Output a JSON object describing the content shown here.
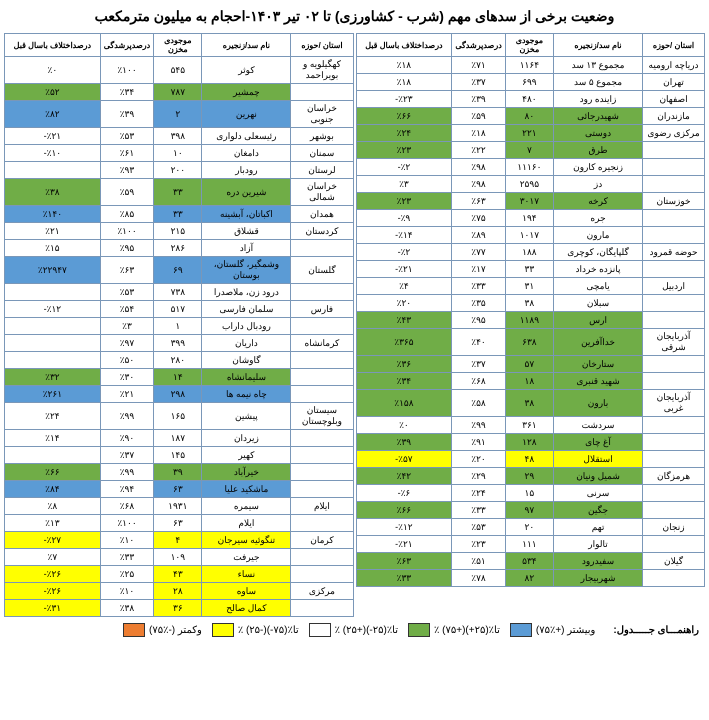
{
  "title": "وضعیت برخی از سدهای مهم (شرب - کشاورزی) تا ۰۲ تیر ۱۴۰۳-احجام به میلیون مترمکعب",
  "headers": {
    "province": "استان /حوزه",
    "name": "نام سد/زنجیره",
    "volume": "موجودی مخزن",
    "fill": "درصدپرشدگی",
    "diff": "درصداختلاف باسال قبل"
  },
  "legend": {
    "title": "راهنمـــای جـــــدول:",
    "items": [
      {
        "swatch": "sw-blue",
        "label": "(۷۵٪+) وبیشتر"
      },
      {
        "swatch": "sw-green",
        "label": "٪ (۷۵+)تا٪(۲۵+)"
      },
      {
        "swatch": "sw-white",
        "label": "٪ (۲۵+)تا٪(۲۵-)"
      },
      {
        "swatch": "sw-yellow",
        "label": "٪ (۲۵-)تا٪(۷۵-)"
      },
      {
        "swatch": "sw-orange",
        "label": "(۷۵٪-) وکمتر"
      }
    ]
  },
  "right": [
    {
      "prov": "دریاچه ارومیه",
      "name": "مجموع ۱۳ سد",
      "vol": "۱۱۶۴",
      "fill": "٪۷۱",
      "diff": "٪۱۸",
      "cls": "c-white"
    },
    {
      "prov": "تهران",
      "name": "مجموع ۵ سد",
      "vol": "۶۹۹",
      "fill": "٪۳۷",
      "diff": "٪۱۸",
      "cls": "c-white"
    },
    {
      "prov": "اصفهان",
      "name": "زاینده رود",
      "vol": "۴۸۰",
      "fill": "٪۳۹",
      "diff": "٪۲۳-",
      "cls": "c-white"
    },
    {
      "prov": "مازندران",
      "name": "شهیدرجائی",
      "vol": "۸۰",
      "fill": "٪۵۹",
      "diff": "٪۶۶",
      "cls": "c-green"
    },
    {
      "prov": "مرکزی رضوی",
      "name": "دوستی",
      "vol": "۲۲۱",
      "fill": "٪۱۸",
      "diff": "٪۲۴",
      "cls": "c-green"
    },
    {
      "prov": "",
      "name": "طرق",
      "vol": "۷",
      "fill": "٪۲۲",
      "diff": "٪۲۳",
      "cls": "c-green"
    },
    {
      "prov": "",
      "name": "زنجیره کارون",
      "vol": "۱۱۱۶۰",
      "fill": "٪۹۸",
      "diff": "٪۲-",
      "cls": "c-white"
    },
    {
      "prov": "",
      "name": "دز",
      "vol": "۲۵۹۵",
      "fill": "٪۹۸",
      "diff": "٪۳",
      "cls": "c-white"
    },
    {
      "prov": "خوزستان",
      "name": "کرخه",
      "vol": "۳۰۱۷",
      "fill": "٪۶۳",
      "diff": "٪۲۳",
      "cls": "c-green"
    },
    {
      "prov": "",
      "name": "جره",
      "vol": "۱۹۴",
      "fill": "٪۷۵",
      "diff": "٪۹-",
      "cls": "c-white"
    },
    {
      "prov": "",
      "name": "مارون",
      "vol": "۱۰۱۷",
      "fill": "٪۸۹",
      "diff": "٪۱۴-",
      "cls": "c-white"
    },
    {
      "prov": "حوضه قمرود",
      "name": "گلپایگان، کوچری",
      "vol": "۱۸۸",
      "fill": "٪۷۷",
      "diff": "٪۲-",
      "cls": "c-white"
    },
    {
      "prov": "",
      "name": "پانزده خرداد",
      "vol": "۳۳",
      "fill": "٪۱۷",
      "diff": "٪۲۱-",
      "cls": "c-white"
    },
    {
      "prov": "اردبیل",
      "name": "یامچی",
      "vol": "۳۱",
      "fill": "٪۳۳",
      "diff": "٪۴",
      "cls": "c-white"
    },
    {
      "prov": "",
      "name": "سبلان",
      "vol": "۳۸",
      "fill": "٪۳۵",
      "diff": "٪۲۰",
      "cls": "c-white"
    },
    {
      "prov": "",
      "name": "ارس",
      "vol": "۱۱۸۹",
      "fill": "٪۹۵",
      "diff": "٪۴۳",
      "cls": "c-green"
    },
    {
      "prov": "آذربایجان شرقی",
      "name": "خداآفرین",
      "vol": "۶۳۸",
      "fill": "٪۴۰",
      "diff": "٪۳۶۵",
      "cls": "c-green"
    },
    {
      "prov": "",
      "name": "ستارخان",
      "vol": "۵۷",
      "fill": "٪۳۷",
      "diff": "٪۳۶",
      "cls": "c-green"
    },
    {
      "prov": "",
      "name": "شهید قنبری",
      "vol": "۱۸",
      "fill": "٪۶۸",
      "diff": "٪۳۴",
      "cls": "c-green"
    },
    {
      "prov": "آذربایجان غربی",
      "name": "بارون",
      "vol": "۳۸",
      "fill": "٪۵۸",
      "diff": "٪۱۵۸",
      "cls": "c-green"
    },
    {
      "prov": "",
      "name": "سردشت",
      "vol": "۳۶۱",
      "fill": "٪۹۹",
      "diff": "٪۰",
      "cls": "c-white"
    },
    {
      "prov": "",
      "name": "آغ چای",
      "vol": "۱۲۸",
      "fill": "٪۹۱",
      "diff": "٪۳۹",
      "cls": "c-green"
    },
    {
      "prov": "",
      "name": "استقلال",
      "vol": "۴۸",
      "fill": "٪۲۰",
      "diff": "٪۵۷-",
      "cls": "c-yellow"
    },
    {
      "prov": "هرمزگان",
      "name": "شمیل ونیان",
      "vol": "۲۹",
      "fill": "٪۲۹",
      "diff": "٪۴۲",
      "cls": "c-green"
    },
    {
      "prov": "",
      "name": "سرنی",
      "vol": "۱۵",
      "fill": "٪۲۴",
      "diff": "٪۶-",
      "cls": "c-white"
    },
    {
      "prov": "",
      "name": "جگین",
      "vol": "۹۷",
      "fill": "٪۳۳",
      "diff": "٪۶۶",
      "cls": "c-green"
    },
    {
      "prov": "زنجان",
      "name": "تهم",
      "vol": "۲۰",
      "fill": "٪۵۳",
      "diff": "٪۱۲-",
      "cls": "c-white"
    },
    {
      "prov": "",
      "name": "تالوار",
      "vol": "۱۱۱",
      "fill": "٪۲۳",
      "diff": "٪۲۱-",
      "cls": "c-white"
    },
    {
      "prov": "گیلان",
      "name": "سفیدرود",
      "vol": "۵۳۴",
      "fill": "٪۵۱",
      "diff": "٪۶۳",
      "cls": "c-green"
    },
    {
      "prov": "",
      "name": "شهربیجار",
      "vol": "۸۲",
      "fill": "٪۷۸",
      "diff": "٪۳۳",
      "cls": "c-green"
    }
  ],
  "left": [
    {
      "prov": "کهگیلویه و بویراحمد",
      "name": "کوثر",
      "vol": "۵۴۵",
      "fill": "٪۱۰۰",
      "diff": "٪۰",
      "cls": "c-white"
    },
    {
      "prov": "",
      "name": "چمشیر",
      "vol": "۷۸۷",
      "fill": "٪۳۴",
      "diff": "٪۵۲",
      "cls": "c-green"
    },
    {
      "prov": "خراسان جنوبی",
      "name": "نهرین",
      "vol": "۲",
      "fill": "٪۳۹",
      "diff": "٪۸۲",
      "cls": "c-blue"
    },
    {
      "prov": "بوشهر",
      "name": "رئیسعلی دلواری",
      "vol": "۳۹۸",
      "fill": "٪۵۳",
      "diff": "٪۲۱-",
      "cls": "c-white"
    },
    {
      "prov": "سمنان",
      "name": "دامغان",
      "vol": "۱۰",
      "fill": "٪۶۱",
      "diff": "٪۱۰-",
      "cls": "c-white"
    },
    {
      "prov": "لرستان",
      "name": "رودبار",
      "vol": "۲۰۰",
      "fill": "٪۹۳",
      "diff": "",
      "cls": "c-white"
    },
    {
      "prov": "خراسان شمالی",
      "name": "شیرین دره",
      "vol": "۳۳",
      "fill": "٪۵۹",
      "diff": "٪۳۸",
      "cls": "c-green"
    },
    {
      "prov": "همدان",
      "name": "اکباتان، آبشینه",
      "vol": "۳۳",
      "fill": "٪۸۵",
      "diff": "٪۱۴۰",
      "cls": "c-blue"
    },
    {
      "prov": "کردستان",
      "name": "قشلاق",
      "vol": "۲۱۵",
      "fill": "٪۱۰۰",
      "diff": "٪۲۱",
      "cls": "c-white"
    },
    {
      "prov": "",
      "name": "آزاد",
      "vol": "۲۸۶",
      "fill": "٪۹۵",
      "diff": "٪۱۵",
      "cls": "c-white"
    },
    {
      "prov": "گلستان",
      "name": "وشمگیر، گلستان، بوستان",
      "vol": "۶۹",
      "fill": "٪۶۳",
      "diff": "٪۲۲۹۴۷",
      "cls": "c-blue"
    },
    {
      "prov": "",
      "name": "درود زن، ملاصدرا",
      "vol": "۷۳۸",
      "fill": "٪۵۳",
      "diff": "",
      "cls": "c-white"
    },
    {
      "prov": "فارس",
      "name": "سلمان فارسی",
      "vol": "۵۱۷",
      "fill": "٪۵۴",
      "diff": "٪۱۲-",
      "cls": "c-white"
    },
    {
      "prov": "",
      "name": "رودبال داراب",
      "vol": "۱",
      "fill": "٪۳",
      "diff": "",
      "cls": "c-white"
    },
    {
      "prov": "کرمانشاه",
      "name": "داریان",
      "vol": "۳۹۹",
      "fill": "٪۹۷",
      "diff": "",
      "cls": "c-white"
    },
    {
      "prov": "",
      "name": "گاوشان",
      "vol": "۲۸۰",
      "fill": "٪۵۰",
      "diff": "",
      "cls": "c-white"
    },
    {
      "prov": "",
      "name": "سلیمانشاه",
      "vol": "۱۴",
      "fill": "٪۳۰",
      "diff": "٪۳۲",
      "cls": "c-green"
    },
    {
      "prov": "",
      "name": "چاه نیمه ها",
      "vol": "۲۹۸",
      "fill": "٪۲۱",
      "diff": "٪۲۶۱",
      "cls": "c-blue"
    },
    {
      "prov": "سیستان وبلوچستان",
      "name": "پیشین",
      "vol": "۱۶۵",
      "fill": "٪۹۹",
      "diff": "٪۲۴",
      "cls": "c-white"
    },
    {
      "prov": "",
      "name": "زیردان",
      "vol": "۱۸۷",
      "fill": "٪۹۰",
      "diff": "٪۱۴",
      "cls": "c-white"
    },
    {
      "prov": "",
      "name": "کهیر",
      "vol": "۱۴۵",
      "fill": "٪۳۷",
      "diff": "",
      "cls": "c-white"
    },
    {
      "prov": "",
      "name": "خیرآباد",
      "vol": "۳۹",
      "fill": "٪۹۹",
      "diff": "٪۶۶",
      "cls": "c-green"
    },
    {
      "prov": "",
      "name": "ماشکید علیا",
      "vol": "۶۳",
      "fill": "٪۹۴",
      "diff": "٪۸۴",
      "cls": "c-blue"
    },
    {
      "prov": "ایلام",
      "name": "سیمره",
      "vol": "۱۹۳۱",
      "fill": "٪۶۸",
      "diff": "٪۸",
      "cls": "c-white"
    },
    {
      "prov": "",
      "name": "ایلام",
      "vol": "۶۳",
      "fill": "٪۱۰۰",
      "diff": "٪۱۳",
      "cls": "c-white"
    },
    {
      "prov": "کرمان",
      "name": "تنگوئیه سیرجان",
      "vol": "۴",
      "fill": "٪۱۰",
      "diff": "٪۲۷-",
      "cls": "c-yellow"
    },
    {
      "prov": "",
      "name": "جیرفت",
      "vol": "۱۰۹",
      "fill": "٪۳۳",
      "diff": "٪۷",
      "cls": "c-white"
    },
    {
      "prov": "",
      "name": "نساء",
      "vol": "۴۳",
      "fill": "٪۲۵",
      "diff": "٪۲۶-",
      "cls": "c-yellow"
    },
    {
      "prov": "مرکزی",
      "name": "ساوه",
      "vol": "۲۸",
      "fill": "٪۱۰",
      "diff": "٪۲۶-",
      "cls": "c-yellow"
    },
    {
      "prov": "",
      "name": "کمال صالح",
      "vol": "۳۶",
      "fill": "٪۳۸",
      "diff": "٪۳۱-",
      "cls": "c-yellow"
    }
  ]
}
